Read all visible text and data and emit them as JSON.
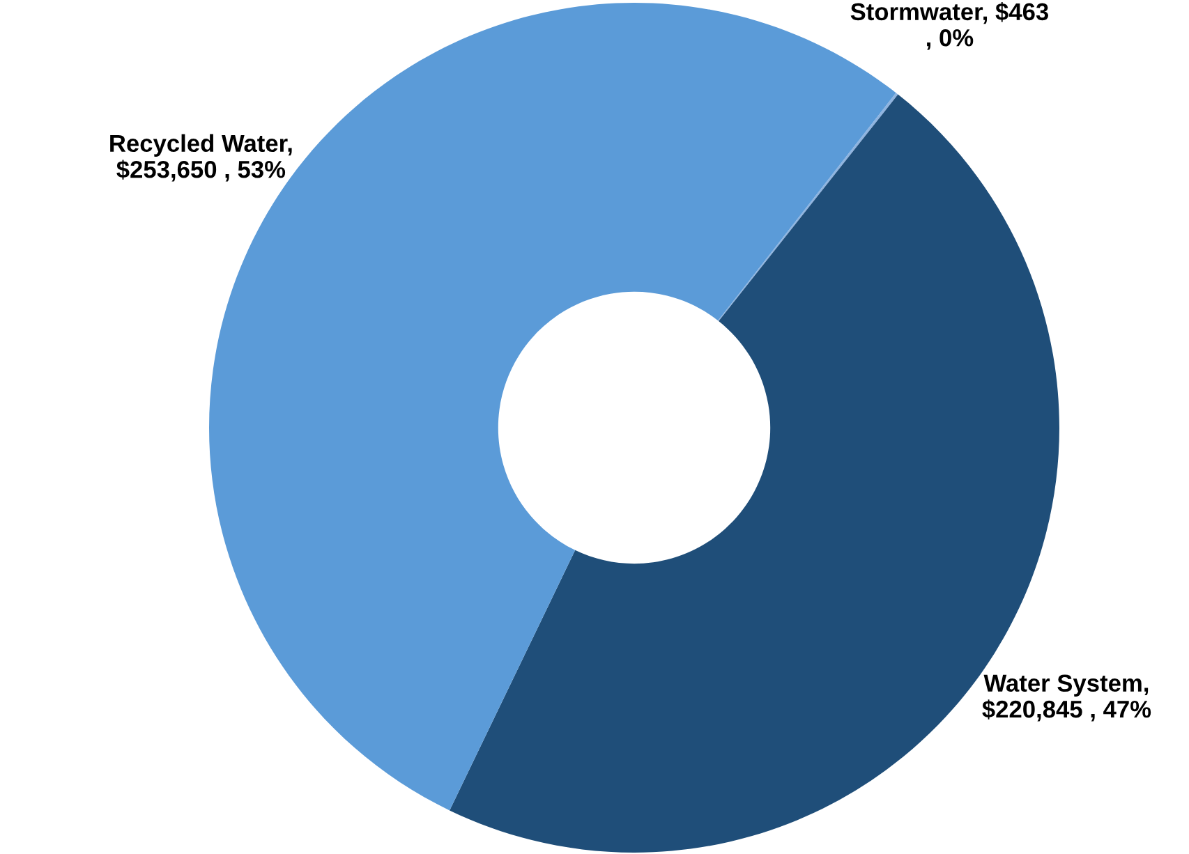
{
  "chart_data": {
    "type": "donut",
    "categories": [
      "Stormwater",
      "Water System",
      "Recycled Water"
    ],
    "values": [
      463,
      220845,
      253650
    ],
    "value_labels": [
      ", $463\n, 0%",
      ",\n$220,845 , 47%",
      ",\n$253,650 , 53%"
    ],
    "colors": [
      "#8fb4e0",
      "#1f4e79",
      "#5b9bd8"
    ],
    "legend": false
  }
}
